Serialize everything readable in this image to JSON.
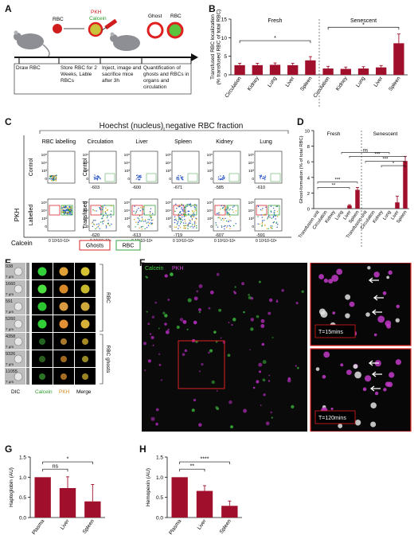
{
  "panels": {
    "A": "A",
    "B": "B",
    "C": "C",
    "D": "D",
    "E": "E",
    "F": "F",
    "G": "G",
    "H": "H"
  },
  "panel_a": {
    "labels": {
      "rbc": "RBC",
      "pkh": "PKH",
      "calcein": "Calcein",
      "ghost": "Ghost",
      "rbc2": "RBC"
    },
    "steps": [
      "Draw RBC",
      "Store RBC for 2 Weeks, Lable RBCs",
      "Inject, image and sacrifice mice after 3h",
      "Quantification of ghosts and RBCs in organs and circulation"
    ]
  },
  "panel_c": {
    "title": "Hoechst (nucleus) negative RBC fraction",
    "columns": [
      "RBC labelling",
      "Circulation",
      "Liver",
      "Spleen",
      "Kidney",
      "Lung"
    ],
    "row_labels": {
      "control": "Control",
      "labelled": "Labelled",
      "transfused": "Transfused"
    },
    "ticks": [
      "10⁵",
      "10⁴",
      "10³",
      "0"
    ],
    "xticks": "0 10³10⁴10⁵",
    "neg_values": [
      "-603",
      "-600",
      "-671",
      "-585",
      "-610"
    ],
    "neg_values_bottom": [
      "-620",
      "-613",
      "-719",
      "-607",
      "-591"
    ],
    "axis_y": "PKH",
    "axis_x": "Calcein",
    "legend": {
      "ghosts": "Ghosts",
      "rbc": "RBC"
    },
    "colors": {
      "ghosts": "#d9262b",
      "rbc": "#3aa040"
    }
  },
  "panel_e": {
    "ids": [
      "938",
      "1660",
      "591",
      "5260",
      "4358",
      "9326",
      "11055"
    ],
    "scale": "7 μm",
    "cols": {
      "dic": "DIC",
      "calcein": "Calcein",
      "pkh": "PKH",
      "merge": "Merge"
    },
    "groups": {
      "rbc": "RBC",
      "ghosts": "RBC ghosts"
    }
  },
  "panel_f": {
    "legend_calcein": "Calcein",
    "legend_pkh": "PKH",
    "t1": "T=15mins",
    "t2": "T=120mins"
  },
  "chart_data": [
    {
      "id": "B",
      "type": "bar",
      "categories": [
        "Circulation",
        "Kidney",
        "Lung",
        "Liver",
        "Spleen",
        "Circulation",
        "Kidney",
        "Lung",
        "Liver",
        "Spleen"
      ],
      "values": [
        2.6,
        2.6,
        2.7,
        2.6,
        3.9,
        1.7,
        1.6,
        1.7,
        2.0,
        8.5
      ],
      "errors": [
        0.5,
        0.5,
        0.5,
        0.5,
        1.0,
        0.6,
        0.5,
        0.5,
        0.5,
        2.5
      ],
      "groups": [
        "Fresh",
        "Senescent"
      ],
      "ylabel": "Transfused RBC localization (% transfused RBC of total RBC)",
      "ylim": [
        0,
        15
      ],
      "yticks": [
        0,
        5,
        10,
        15
      ],
      "significance": [
        "*",
        "*"
      ],
      "color": "#a0102c"
    },
    {
      "id": "D",
      "type": "bar",
      "categories": [
        "Transfusion unit",
        "Circulation",
        "Kidney",
        "Lung",
        "Liver",
        "Spleen",
        "Transfusion unit",
        "Circulation",
        "Kidney",
        "Lung",
        "Liver",
        "Spleen"
      ],
      "values": [
        0,
        0,
        0,
        0,
        0.4,
        2.4,
        0,
        0,
        0,
        0,
        0.8,
        6.1
      ],
      "errors": [
        0,
        0,
        0,
        0,
        0.1,
        0.3,
        0,
        0,
        0,
        0,
        0.8,
        0.6
      ],
      "groups": [
        "Fresh",
        "Senescent"
      ],
      "ylabel": "Ghost-formation (% of total RBC)",
      "ylim": [
        0,
        10
      ],
      "yticks": [
        0,
        2,
        4,
        6,
        8,
        10
      ],
      "significance": [
        "***",
        "**",
        "ns",
        "***",
        "***",
        "*"
      ],
      "color": "#a0102c"
    },
    {
      "id": "G",
      "type": "bar",
      "categories": [
        "Plasma",
        "Liver",
        "Spleen"
      ],
      "values": [
        1.0,
        0.73,
        0.4
      ],
      "errors": [
        0,
        0.28,
        0.42
      ],
      "ylabel": "Haptoglobin (AU)",
      "ylim": [
        0,
        1.5
      ],
      "yticks": [
        "0.0",
        "0.5",
        "1.0",
        "1.5"
      ],
      "significance": [
        "ns",
        "*"
      ],
      "color": "#a0102c"
    },
    {
      "id": "H",
      "type": "bar",
      "categories": [
        "Plasma",
        "Liver",
        "Spleen"
      ],
      "values": [
        1.0,
        0.66,
        0.29
      ],
      "errors": [
        0,
        0.13,
        0.12
      ],
      "ylabel": "Hemopexin (AU)",
      "ylim": [
        0,
        1.5
      ],
      "yticks": [
        "0.0",
        "0.5",
        "1.0",
        "1.5"
      ],
      "significance": [
        "**",
        "****"
      ],
      "color": "#a0102c"
    }
  ]
}
